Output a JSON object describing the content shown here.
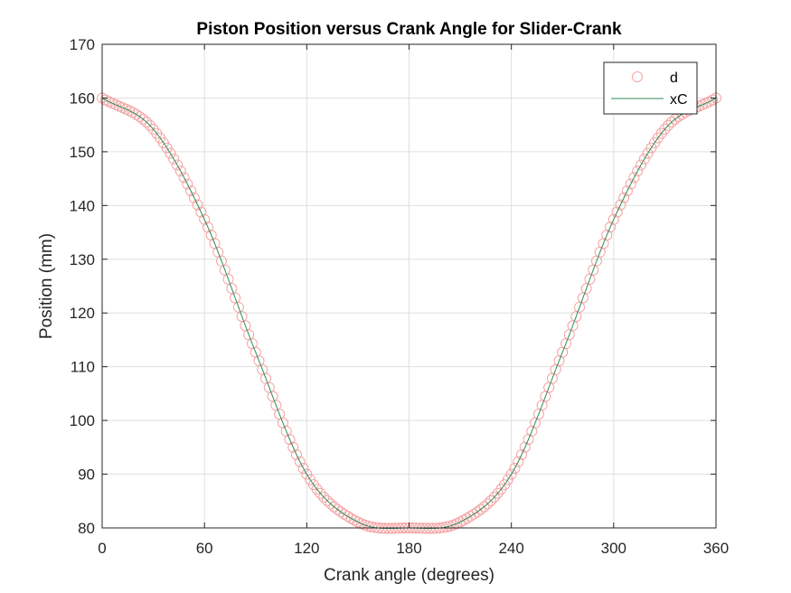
{
  "chart_data": {
    "type": "line",
    "title": "Piston Position versus Crank Angle for Slider-Crank",
    "xlabel": "Crank angle (degrees)",
    "ylabel": "Position (mm)",
    "xlim": [
      0,
      360
    ],
    "ylim": [
      80,
      170
    ],
    "xticks": [
      0,
      60,
      120,
      180,
      240,
      300,
      360
    ],
    "yticks": [
      80,
      90,
      100,
      110,
      120,
      130,
      140,
      150,
      160,
      170
    ],
    "grid": true,
    "legend_position": "top-right",
    "x_step_deg": 2,
    "series": [
      {
        "name": "d",
        "style": "circle-markers",
        "color": "#f4a3a3",
        "x": [
          0,
          30,
          60,
          90,
          120,
          150,
          180,
          210,
          240,
          270,
          300,
          330,
          360
        ],
        "y": [
          160,
          154.2,
          137.4,
          112.7,
          90.0,
          81.1,
          80,
          81.1,
          90.0,
          112.7,
          137.4,
          154.2,
          160
        ]
      },
      {
        "name": "xC",
        "style": "line",
        "color": "#2e8b57",
        "x": [
          0,
          30,
          60,
          90,
          120,
          150,
          180,
          210,
          240,
          270,
          300,
          330,
          360
        ],
        "y": [
          160,
          154.2,
          137.4,
          112.7,
          90.0,
          81.1,
          80,
          81.1,
          90.0,
          112.7,
          137.4,
          154.2,
          160
        ]
      }
    ]
  }
}
